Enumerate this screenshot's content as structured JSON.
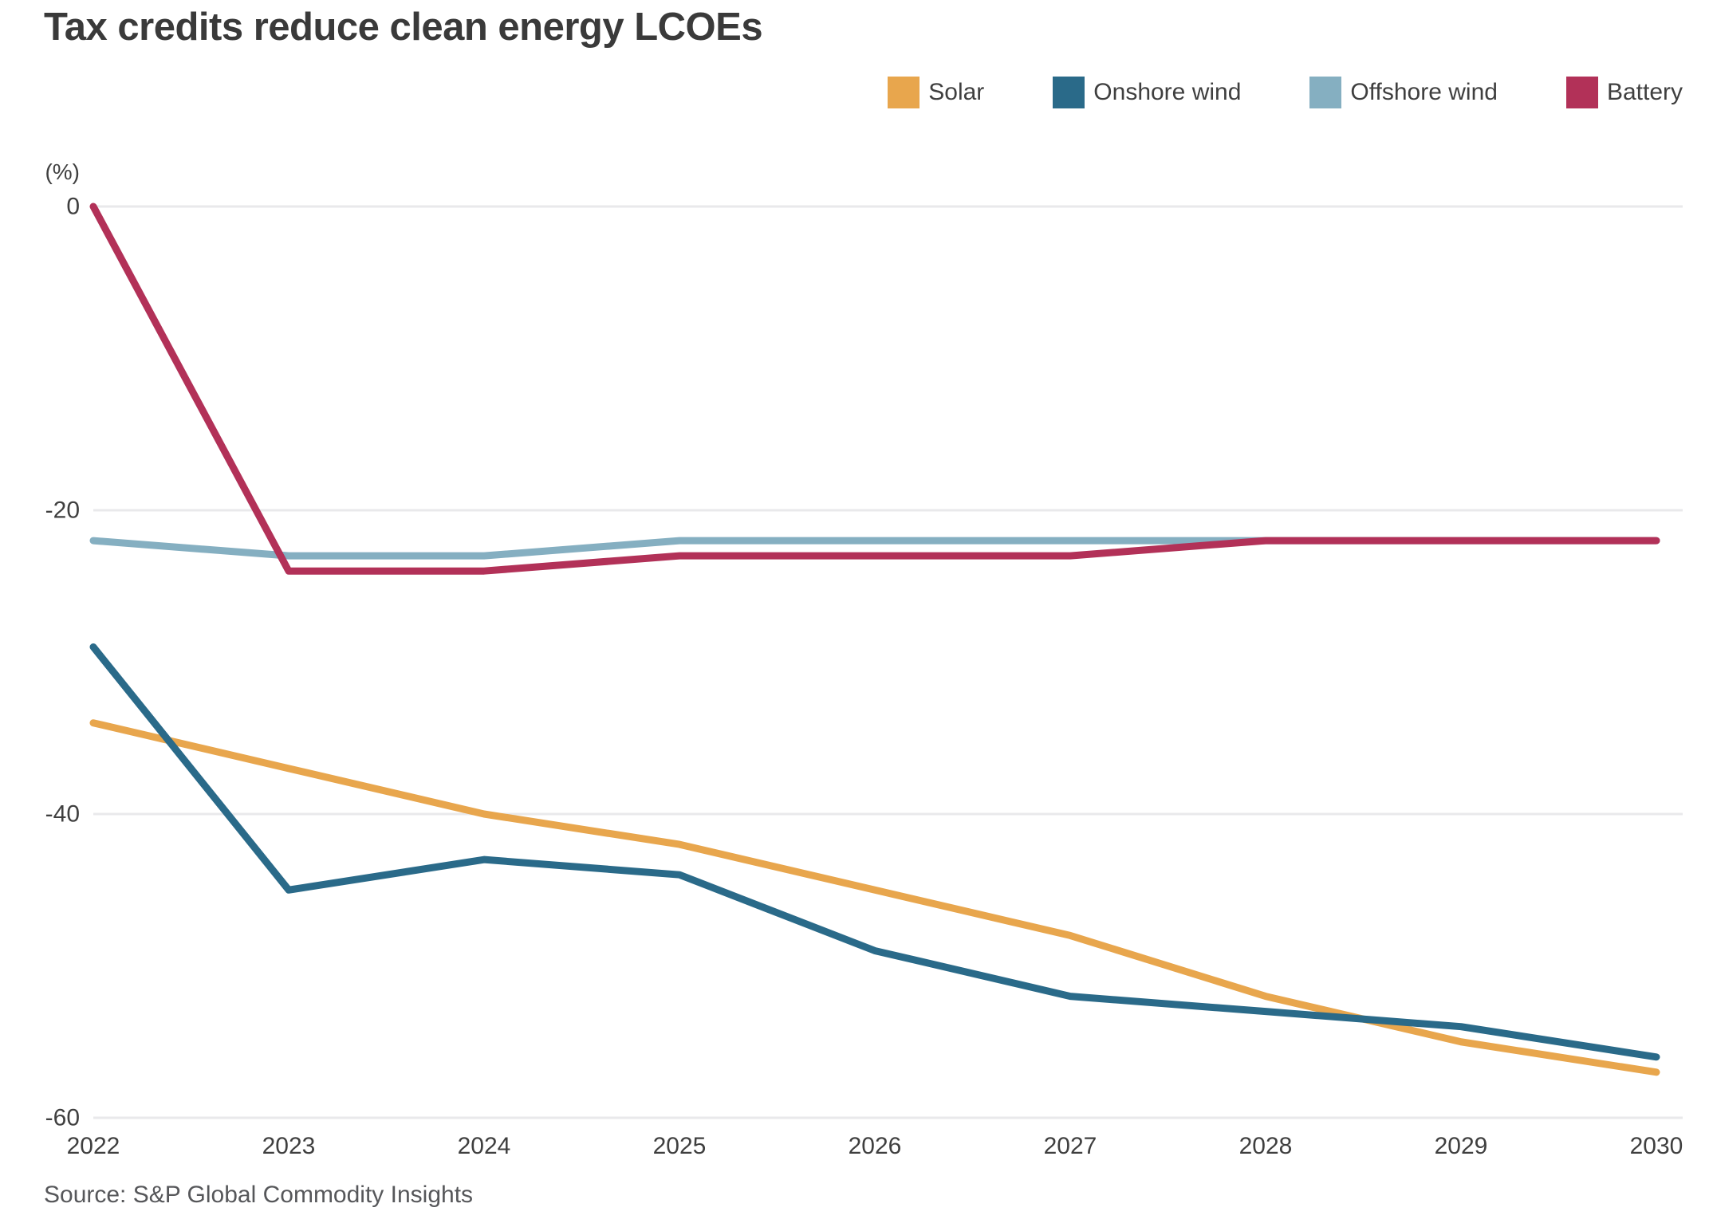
{
  "title": "Tax credits reduce clean energy LCOEs",
  "source": "Source: S&P Global Commodity Insights",
  "chart_data": {
    "type": "line",
    "title": "Tax credits reduce clean energy LCOEs",
    "unit_label": "(%)",
    "x": [
      2022,
      2023,
      2024,
      2025,
      2026,
      2027,
      2028,
      2029,
      2030
    ],
    "series": [
      {
        "name": "Solar",
        "color": "#E8A64D",
        "values": [
          -34,
          -37,
          -40,
          -42,
          -45,
          -48,
          -52,
          -55,
          -57
        ]
      },
      {
        "name": "Onshore wind",
        "color": "#2A6A89",
        "values": [
          -29,
          -45,
          -43,
          -44,
          -49,
          -52,
          -53,
          -54,
          -56
        ]
      },
      {
        "name": "Offshore wind",
        "color": "#85AFC1",
        "values": [
          -22,
          -23,
          -23,
          -22,
          -22,
          -22,
          -22,
          -22,
          -22
        ]
      },
      {
        "name": "Battery",
        "color": "#B23158",
        "values": [
          0,
          -24,
          -24,
          -23,
          -23,
          -23,
          -22,
          -22,
          -22
        ]
      }
    ],
    "ylim": [
      -60,
      0
    ],
    "y_ticks": [
      0,
      -20,
      -40,
      -60
    ],
    "grid": "horizontal",
    "legend_position": "top-right"
  }
}
